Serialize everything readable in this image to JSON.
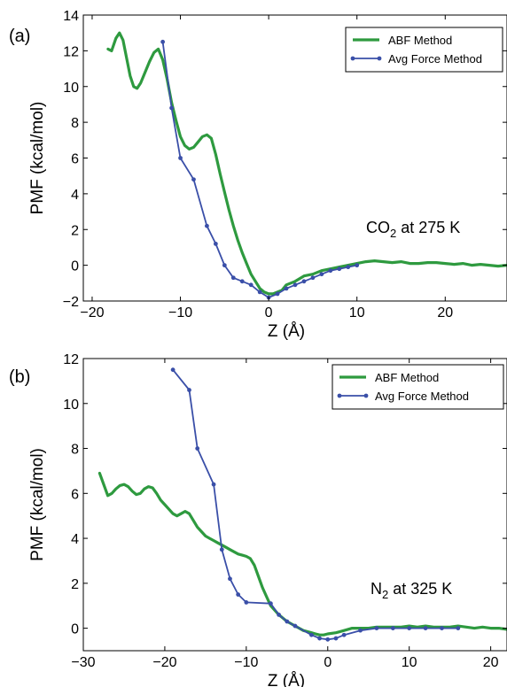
{
  "chart_data": [
    {
      "type": "line",
      "panel_label": "(a)",
      "xlabel": "Z (Å)",
      "ylabel": "PMF (kcal/mol)",
      "xlim": [
        -21,
        27
      ],
      "ylim": [
        -2,
        14
      ],
      "xticks": [
        -20,
        -10,
        0,
        10,
        20
      ],
      "yticks": [
        -2,
        0,
        2,
        4,
        6,
        8,
        10,
        12,
        14
      ],
      "xtick_labels": [
        "−20",
        "−10",
        "0",
        "10",
        "20"
      ],
      "ytick_labels": [
        "−2",
        "0",
        "2",
        "4",
        "6",
        "8",
        "10",
        "12",
        "14"
      ],
      "annotation": {
        "main": "CO",
        "sub": "2",
        "rest": " at 275 K"
      },
      "legend_position": "top-right",
      "grid": false,
      "series": [
        {
          "name": "ABF Method",
          "color": "#2e9a3f",
          "markers": false,
          "x": [
            -18.2,
            -17.8,
            -17.3,
            -16.9,
            -16.5,
            -16.1,
            -15.7,
            -15.3,
            -14.9,
            -14.5,
            -14.0,
            -13.5,
            -13.0,
            -12.5,
            -12.0,
            -11.5,
            -11.0,
            -10.5,
            -10.0,
            -9.5,
            -9.0,
            -8.5,
            -8.0,
            -7.5,
            -7.0,
            -6.5,
            -6.0,
            -5.5,
            -5.0,
            -4.5,
            -4.0,
            -3.5,
            -3.0,
            -2.5,
            -2.0,
            -1.5,
            -1.0,
            -0.5,
            0.0,
            0.5,
            1.0,
            1.5,
            2.0,
            3.0,
            4.0,
            5.0,
            6.0,
            7.0,
            8.0,
            9.0,
            10.0,
            11.0,
            12.0,
            13.0,
            14.0,
            15.0,
            16.0,
            17.0,
            18.0,
            19.0,
            20.0,
            21.0,
            22.0,
            23.0,
            24.0,
            25.0,
            26.0,
            27.0
          ],
          "y": [
            12.1,
            12.0,
            12.7,
            13.0,
            12.6,
            11.6,
            10.6,
            10.0,
            9.9,
            10.2,
            10.8,
            11.4,
            11.9,
            12.1,
            11.5,
            10.4,
            9.1,
            8.1,
            7.2,
            6.7,
            6.5,
            6.6,
            6.9,
            7.2,
            7.3,
            7.1,
            6.2,
            5.1,
            4.1,
            3.1,
            2.2,
            1.4,
            0.7,
            0.1,
            -0.5,
            -0.9,
            -1.3,
            -1.5,
            -1.6,
            -1.6,
            -1.5,
            -1.4,
            -1.1,
            -0.9,
            -0.6,
            -0.5,
            -0.3,
            -0.2,
            -0.1,
            0.0,
            0.1,
            0.2,
            0.25,
            0.2,
            0.15,
            0.2,
            0.1,
            0.1,
            0.15,
            0.15,
            0.1,
            0.05,
            0.1,
            0.0,
            0.05,
            0.0,
            -0.05,
            0.0
          ]
        },
        {
          "name": "Avg Force Method",
          "color": "#3a4fa8",
          "markers": true,
          "x": [
            -12.0,
            -11.0,
            -10.0,
            -8.5,
            -7.0,
            -6.0,
            -5.0,
            -4.0,
            -3.0,
            -2.0,
            -1.0,
            0.0,
            1.0,
            2.0,
            3.0,
            4.0,
            5.0,
            6.0,
            7.0,
            8.0,
            9.0,
            10.0
          ],
          "y": [
            12.5,
            8.8,
            6.0,
            4.8,
            2.2,
            1.2,
            0.0,
            -0.7,
            -0.9,
            -1.1,
            -1.5,
            -1.8,
            -1.6,
            -1.3,
            -1.1,
            -0.9,
            -0.7,
            -0.5,
            -0.3,
            -0.2,
            -0.1,
            0.0
          ]
        }
      ]
    },
    {
      "type": "line",
      "panel_label": "(b)",
      "xlabel": "Z (Å)",
      "ylabel": "PMF (kcal/mol)",
      "xlim": [
        -30,
        22
      ],
      "ylim": [
        -1,
        12
      ],
      "xticks": [
        -30,
        -20,
        -10,
        0,
        10,
        20
      ],
      "yticks": [
        0,
        2,
        4,
        6,
        8,
        10,
        12
      ],
      "xtick_labels": [
        "−30",
        "−20",
        "−10",
        "0",
        "10",
        "20"
      ],
      "ytick_labels": [
        "0",
        "2",
        "4",
        "6",
        "8",
        "10",
        "12"
      ],
      "annotation": {
        "main": "N",
        "sub": "2",
        "rest": " at 325 K"
      },
      "legend_position": "top-right",
      "grid": false,
      "series": [
        {
          "name": "ABF Method",
          "color": "#2e9a3f",
          "markers": false,
          "x": [
            -28.0,
            -27.5,
            -27.0,
            -26.5,
            -26.0,
            -25.5,
            -25.0,
            -24.5,
            -24.0,
            -23.5,
            -23.0,
            -22.5,
            -22.0,
            -21.5,
            -21.0,
            -20.5,
            -20.0,
            -19.5,
            -19.0,
            -18.5,
            -18.0,
            -17.5,
            -17.0,
            -16.5,
            -16.0,
            -15.5,
            -15.0,
            -14.5,
            -14.0,
            -13.5,
            -13.0,
            -12.5,
            -12.0,
            -11.5,
            -11.0,
            -10.5,
            -10.0,
            -9.5,
            -9.0,
            -8.5,
            -8.0,
            -7.5,
            -7.0,
            -6.5,
            -6.0,
            -5.5,
            -5.0,
            -4.5,
            -4.0,
            -3.5,
            -3.0,
            -2.5,
            -2.0,
            -1.5,
            -1.0,
            -0.5,
            0.0,
            1.0,
            2.0,
            3.0,
            4.0,
            5.0,
            6.0,
            7.0,
            8.0,
            9.0,
            10.0,
            11.0,
            12.0,
            13.0,
            14.0,
            15.0,
            16.0,
            17.0,
            18.0,
            19.0,
            20.0,
            21.0,
            22.0
          ],
          "y": [
            6.9,
            6.4,
            5.9,
            6.0,
            6.2,
            6.35,
            6.4,
            6.3,
            6.1,
            5.95,
            6.0,
            6.2,
            6.3,
            6.25,
            6.0,
            5.7,
            5.5,
            5.3,
            5.1,
            5.0,
            5.1,
            5.2,
            5.1,
            4.8,
            4.5,
            4.3,
            4.1,
            4.0,
            3.9,
            3.8,
            3.7,
            3.6,
            3.5,
            3.4,
            3.3,
            3.25,
            3.2,
            3.1,
            2.8,
            2.3,
            1.8,
            1.4,
            1.0,
            0.8,
            0.6,
            0.45,
            0.3,
            0.2,
            0.1,
            0.0,
            -0.1,
            -0.15,
            -0.2,
            -0.25,
            -0.3,
            -0.3,
            -0.25,
            -0.2,
            -0.1,
            0.0,
            0.0,
            0.0,
            0.05,
            0.05,
            0.05,
            0.05,
            0.1,
            0.05,
            0.1,
            0.05,
            0.05,
            0.05,
            0.1,
            0.05,
            0.0,
            0.05,
            0.0,
            0.0,
            -0.05
          ]
        },
        {
          "name": "Avg Force Method",
          "color": "#3a4fa8",
          "markers": true,
          "x": [
            -19.0,
            -17.0,
            -16.0,
            -14.0,
            -13.0,
            -12.0,
            -11.0,
            -10.0,
            -7.0,
            -6.0,
            -5.0,
            -4.0,
            -2.0,
            -1.0,
            0.0,
            1.0,
            2.0,
            4.0,
            6.0,
            8.0,
            10.0,
            12.0,
            14.0,
            16.0
          ],
          "y": [
            11.5,
            10.6,
            8.0,
            6.4,
            3.5,
            2.2,
            1.5,
            1.15,
            1.1,
            0.6,
            0.3,
            0.1,
            -0.3,
            -0.45,
            -0.5,
            -0.45,
            -0.3,
            -0.1,
            0.0,
            0.0,
            0.0,
            0.0,
            0.0,
            0.0
          ]
        }
      ]
    }
  ]
}
